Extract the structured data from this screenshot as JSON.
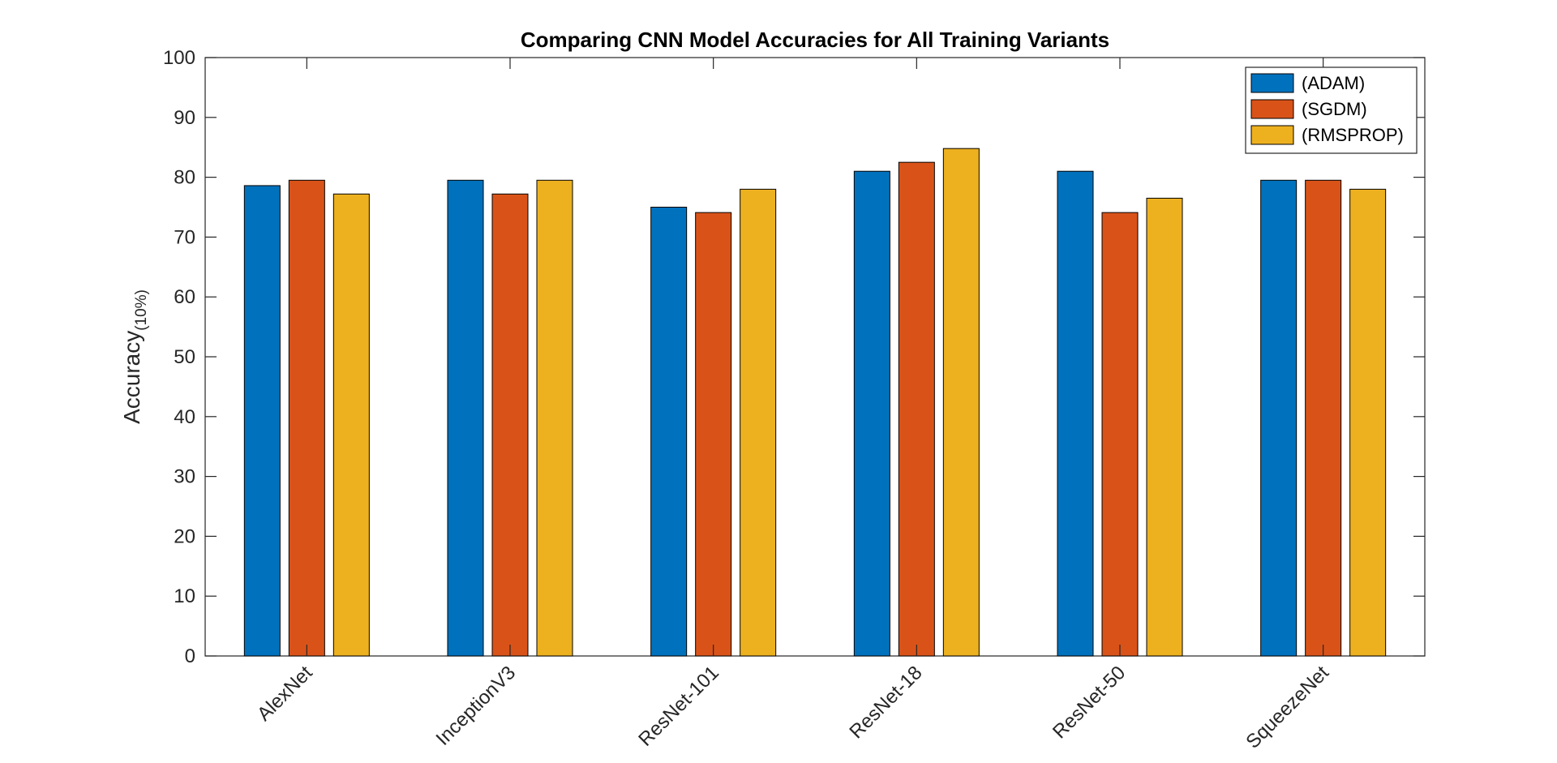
{
  "chart_data": {
    "type": "bar",
    "title": "Comparing CNN Model Accuracies for All Training Variants",
    "xlabel": "",
    "ylabel": "Accuracy",
    "ylabel_subscript": "(10%)",
    "ylim": [
      0,
      100
    ],
    "yticks": [
      0,
      10,
      20,
      30,
      40,
      50,
      60,
      70,
      80,
      90,
      100
    ],
    "categories": [
      "AlexNet",
      "InceptionV3",
      "ResNet-101",
      "ResNet-18",
      "ResNet-50",
      "SqueezeNet"
    ],
    "series": [
      {
        "name": "(ADAM)",
        "color": "#0072BD",
        "values": [
          78.6,
          79.5,
          75.0,
          81.0,
          81.0,
          79.5
        ]
      },
      {
        "name": "(SGDM)",
        "color": "#D95319",
        "values": [
          79.5,
          77.2,
          74.1,
          82.5,
          74.1,
          79.5
        ]
      },
      {
        "name": "(RMSPROP)",
        "color": "#EDB120",
        "values": [
          77.2,
          79.5,
          78.0,
          84.8,
          76.5,
          78.0
        ]
      }
    ],
    "grid": false,
    "legend_position": "top-right"
  }
}
